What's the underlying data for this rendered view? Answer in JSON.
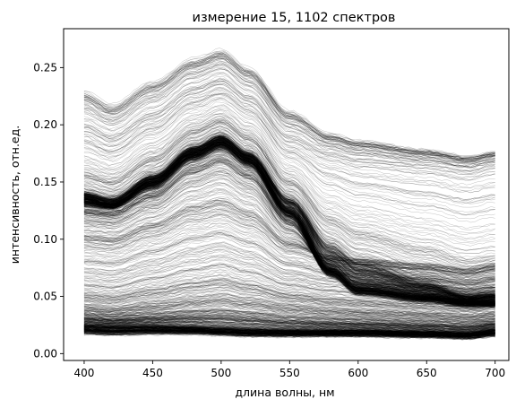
{
  "chart_data": {
    "type": "line",
    "title": "измерение 15, 1102 спектров",
    "xlabel": "длина волны, нм",
    "ylabel": "интенсивность, отн.ед.",
    "xlim": [
      385,
      710
    ],
    "ylim": [
      -0.006,
      0.284
    ],
    "xticks": [
      400,
      450,
      500,
      550,
      600,
      650,
      700
    ],
    "yticks": [
      0.0,
      0.05,
      0.1,
      0.15,
      0.2,
      0.25
    ],
    "grid": false,
    "legend": "none",
    "line_color": "#000000",
    "spectrum_count": 1102,
    "representative_series": [
      {
        "x": [
          400,
          420,
          450,
          480,
          500,
          520,
          550,
          580,
          600,
          650,
          680,
          700
        ],
        "y": [
          0.23,
          0.218,
          0.238,
          0.258,
          0.266,
          0.25,
          0.212,
          0.192,
          0.186,
          0.178,
          0.172,
          0.176
        ]
      },
      {
        "x": [
          400,
          420,
          450,
          480,
          500,
          520,
          550,
          580,
          600,
          650,
          680,
          700
        ],
        "y": [
          0.2,
          0.19,
          0.21,
          0.232,
          0.24,
          0.225,
          0.19,
          0.175,
          0.17,
          0.165,
          0.16,
          0.165
        ]
      },
      {
        "x": [
          400,
          420,
          450,
          480,
          500,
          520,
          550,
          580,
          600,
          650,
          680,
          700
        ],
        "y": [
          0.14,
          0.135,
          0.155,
          0.18,
          0.19,
          0.175,
          0.135,
          0.095,
          0.08,
          0.062,
          0.05,
          0.052
        ]
      },
      {
        "x": [
          400,
          420,
          450,
          480,
          500,
          520,
          550,
          580,
          600,
          650,
          680,
          700
        ],
        "y": [
          0.135,
          0.13,
          0.15,
          0.175,
          0.185,
          0.17,
          0.125,
          0.075,
          0.058,
          0.05,
          0.045,
          0.045
        ]
      },
      {
        "x": [
          400,
          420,
          450,
          480,
          500,
          520,
          550,
          580,
          600,
          650,
          680,
          700
        ],
        "y": [
          0.13,
          0.128,
          0.145,
          0.17,
          0.18,
          0.165,
          0.12,
          0.068,
          0.052,
          0.046,
          0.042,
          0.042
        ]
      },
      {
        "x": [
          400,
          420,
          450,
          480,
          500,
          520,
          550,
          580,
          600,
          650,
          680,
          700
        ],
        "y": [
          0.1,
          0.098,
          0.11,
          0.125,
          0.13,
          0.12,
          0.095,
          0.085,
          0.082,
          0.078,
          0.074,
          0.078
        ]
      },
      {
        "x": [
          400,
          420,
          450,
          480,
          500,
          520,
          550,
          580,
          600,
          650,
          680,
          700
        ],
        "y": [
          0.06,
          0.058,
          0.066,
          0.074,
          0.078,
          0.072,
          0.06,
          0.055,
          0.053,
          0.05,
          0.047,
          0.05
        ]
      },
      {
        "x": [
          400,
          420,
          450,
          480,
          500,
          520,
          550,
          580,
          600,
          650,
          680,
          700
        ],
        "y": [
          0.04,
          0.038,
          0.042,
          0.046,
          0.048,
          0.045,
          0.04,
          0.037,
          0.036,
          0.034,
          0.032,
          0.034
        ]
      },
      {
        "x": [
          400,
          420,
          450,
          480,
          500,
          520,
          550,
          580,
          600,
          650,
          680,
          700
        ],
        "y": [
          0.025,
          0.024,
          0.024,
          0.023,
          0.022,
          0.021,
          0.02,
          0.02,
          0.02,
          0.019,
          0.018,
          0.021
        ]
      },
      {
        "x": [
          400,
          420,
          450,
          480,
          500,
          520,
          550,
          580,
          600,
          650,
          680,
          700
        ],
        "y": [
          0.018,
          0.017,
          0.018,
          0.018,
          0.017,
          0.016,
          0.016,
          0.016,
          0.016,
          0.015,
          0.014,
          0.016
        ]
      }
    ]
  }
}
